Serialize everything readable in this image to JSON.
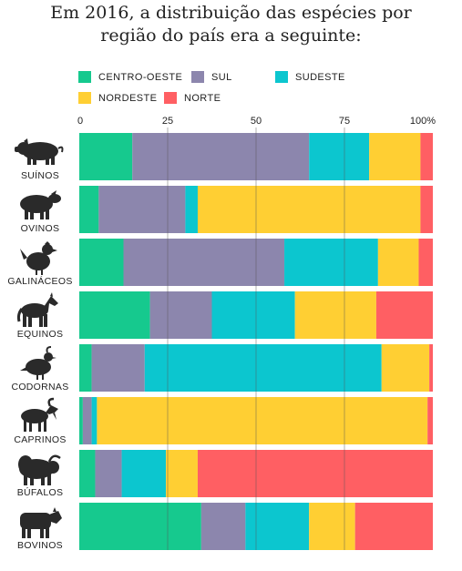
{
  "title": {
    "line1": "Em 2016, a distribuição das espécies por",
    "line2": "região do país era a seguinte:"
  },
  "colors": {
    "CENTRO-OESTE": "#16c98e",
    "SUL": "#8c86ad",
    "SUDESTE": "#0cc6cf",
    "NORDESTE": "#ffcf33",
    "NORTE": "#ff5f63",
    "grid": "#555555",
    "icon": "#2a2a2a"
  },
  "chart_data": {
    "type": "bar",
    "orientation": "horizontal",
    "stacked": true,
    "title": "Em 2016, a distribuição das espécies por região do país era a seguinte:",
    "xlim": [
      0,
      100
    ],
    "tick_labels": [
      "0",
      "25",
      "50",
      "75",
      "100%"
    ],
    "tick_values": [
      0,
      25,
      50,
      75,
      100
    ],
    "grid": true,
    "legend": "top",
    "categories": [
      "SUÍNOS",
      "OVINOS",
      "GALINÁCEOS",
      "EQUINOS",
      "CODORNAS",
      "CAPRINOS",
      "BÚFALOS",
      "BOVINOS"
    ],
    "icons": [
      "pig-icon",
      "sheep-icon",
      "chicken-icon",
      "horse-icon",
      "quail-icon",
      "goat-icon",
      "buffalo-icon",
      "cow-icon"
    ],
    "series": [
      {
        "name": "CENTRO-OESTE",
        "values": [
          15,
          5.5,
          12.5,
          20,
          3.5,
          1,
          4.5,
          34.5
        ]
      },
      {
        "name": "SUL",
        "values": [
          50,
          24.5,
          45.5,
          17.5,
          15,
          2.5,
          7.5,
          12.5
        ]
      },
      {
        "name": "SUDESTE",
        "values": [
          17,
          3.5,
          26.5,
          23.5,
          67,
          1.5,
          12.5,
          18
        ]
      },
      {
        "name": "NORDESTE",
        "values": [
          14.5,
          63,
          11.5,
          23,
          13.5,
          93.5,
          9,
          13
        ]
      },
      {
        "name": "NORTE",
        "values": [
          3.5,
          3.5,
          4,
          16,
          1,
          1.5,
          66.5,
          22
        ]
      }
    ]
  }
}
